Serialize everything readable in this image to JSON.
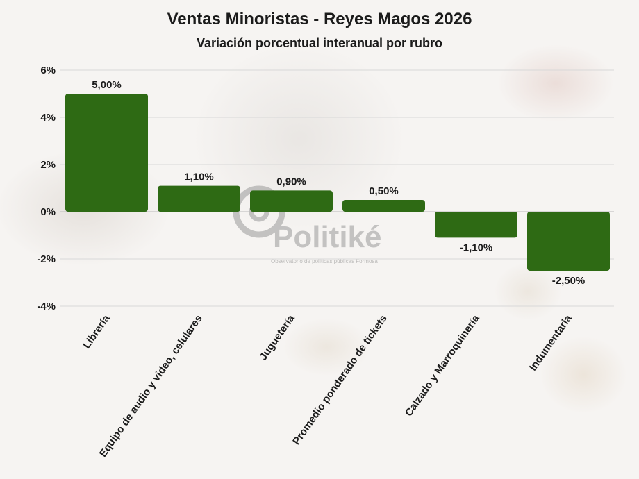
{
  "chart_data": {
    "type": "bar",
    "title": "Ventas Minoristas - Reyes Magos 2026",
    "subtitle": "Variación porcentual interanual por rubro",
    "categories": [
      "Librería",
      "Equipo de audio y video, celulares",
      "Juguetería",
      "Promedio ponderado de tickets",
      "Calzado y Marroquinería",
      "Indumentaria"
    ],
    "values": [
      5.0,
      1.1,
      0.9,
      0.5,
      -1.1,
      -2.5
    ],
    "value_labels": [
      "5,00%",
      "1,10%",
      "0,90%",
      "0,50%",
      "-1,10%",
      "-2,50%"
    ],
    "ylim": [
      -4,
      6
    ],
    "yticks": [
      6,
      4,
      2,
      0,
      -2,
      -4
    ],
    "ytick_labels": [
      "6%",
      "4%",
      "2%",
      "0%",
      "-2%",
      "-4%"
    ],
    "bar_color": "#2e6a14",
    "grid": true,
    "legend": "none"
  },
  "watermark": {
    "brand": "Politiké",
    "tagline": "Observatorio de políticas públicas Formosa"
  }
}
